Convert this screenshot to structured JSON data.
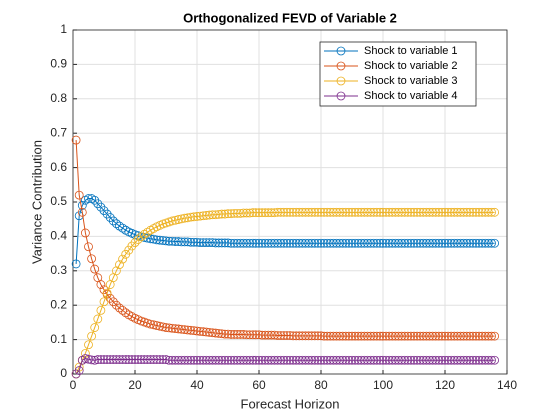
{
  "chart_data": {
    "type": "line",
    "title": "Orthogonalized FEVD of Variable 2",
    "x_label": "Forecast Horizon",
    "y_label": "Variance Contribution",
    "xlim": [
      0,
      140
    ],
    "xticks": [
      0,
      20,
      40,
      60,
      80,
      100,
      120,
      140
    ],
    "ylim": [
      0,
      1
    ],
    "yticks": [
      0,
      0.1,
      0.2,
      0.3,
      0.4,
      0.5,
      0.6,
      0.7,
      0.8,
      0.9,
      1
    ],
    "grid": true,
    "legend_position": "top-right",
    "marker": "circle",
    "x": [
      1,
      2,
      3,
      4,
      5,
      6,
      7,
      8,
      9,
      10,
      11,
      12,
      13,
      14,
      15,
      16,
      17,
      18,
      19,
      20,
      21,
      22,
      23,
      24,
      25,
      26,
      27,
      28,
      29,
      30,
      31,
      32,
      33,
      34,
      35,
      36,
      37,
      38,
      39,
      40,
      41,
      42,
      43,
      44,
      45,
      46,
      47,
      48,
      49,
      50,
      51,
      52,
      53,
      54,
      55,
      56,
      57,
      58,
      59,
      60,
      61,
      62,
      63,
      64,
      65,
      66,
      67,
      68,
      69,
      70,
      71,
      72,
      73,
      74,
      75,
      76,
      77,
      78,
      79,
      80,
      81,
      82,
      83,
      84,
      85,
      86,
      87,
      88,
      89,
      90,
      91,
      92,
      93,
      94,
      95,
      96,
      97,
      98,
      99,
      100,
      101,
      102,
      103,
      104,
      105,
      106,
      107,
      108,
      109,
      110,
      111,
      112,
      113,
      114,
      115,
      116,
      117,
      118,
      119,
      120,
      121,
      122,
      123,
      124,
      125,
      126,
      127,
      128,
      129,
      130,
      131,
      132,
      133,
      134,
      135,
      136
    ],
    "series": [
      {
        "name": "Shock to variable 1",
        "color": "#0072BD",
        "values": [
          0.32,
          0.46,
          0.49,
          0.505,
          0.51,
          0.51,
          0.505,
          0.495,
          0.485,
          0.475,
          0.465,
          0.455,
          0.445,
          0.437,
          0.43,
          0.424,
          0.418,
          0.413,
          0.409,
          0.405,
          0.402,
          0.399,
          0.397,
          0.395,
          0.393,
          0.392,
          0.39,
          0.389,
          0.388,
          0.387,
          0.386,
          0.386,
          0.385,
          0.385,
          0.384,
          0.384,
          0.384,
          0.383,
          0.383,
          0.383,
          0.382,
          0.382,
          0.382,
          0.382,
          0.382,
          0.381,
          0.381,
          0.381,
          0.381,
          0.381,
          0.38,
          0.38,
          0.38,
          0.38,
          0.38,
          0.38,
          0.38,
          0.38,
          0.38,
          0.38,
          0.38,
          0.38,
          0.38,
          0.38,
          0.38,
          0.38,
          0.38,
          0.38,
          0.38,
          0.38,
          0.38,
          0.38,
          0.38,
          0.38,
          0.38,
          0.38,
          0.38,
          0.38,
          0.38,
          0.38,
          0.38,
          0.38,
          0.38,
          0.38,
          0.38,
          0.38,
          0.38,
          0.38,
          0.38,
          0.38,
          0.38,
          0.38,
          0.38,
          0.38,
          0.38,
          0.38,
          0.38,
          0.38,
          0.38,
          0.38,
          0.38,
          0.38,
          0.38,
          0.38,
          0.38,
          0.38,
          0.38,
          0.38,
          0.38,
          0.38,
          0.38,
          0.38,
          0.38,
          0.38,
          0.38,
          0.38,
          0.38,
          0.38,
          0.38,
          0.38,
          0.38,
          0.38,
          0.38,
          0.38,
          0.38,
          0.38,
          0.38,
          0.38,
          0.38,
          0.38,
          0.38,
          0.38,
          0.38,
          0.38,
          0.38,
          0.38
        ]
      },
      {
        "name": "Shock to variable 2",
        "color": "#D95319",
        "values": [
          0.68,
          0.52,
          0.47,
          0.41,
          0.37,
          0.335,
          0.305,
          0.28,
          0.26,
          0.245,
          0.232,
          0.22,
          0.21,
          0.2,
          0.192,
          0.185,
          0.178,
          0.172,
          0.167,
          0.162,
          0.158,
          0.154,
          0.151,
          0.148,
          0.145,
          0.143,
          0.141,
          0.139,
          0.137,
          0.135,
          0.134,
          0.133,
          0.132,
          0.131,
          0.13,
          0.129,
          0.128,
          0.127,
          0.126,
          0.125,
          0.124,
          0.123,
          0.122,
          0.121,
          0.12,
          0.119,
          0.118,
          0.117,
          0.116,
          0.116,
          0.115,
          0.115,
          0.115,
          0.115,
          0.115,
          0.114,
          0.114,
          0.114,
          0.114,
          0.114,
          0.113,
          0.113,
          0.113,
          0.113,
          0.113,
          0.112,
          0.112,
          0.112,
          0.112,
          0.112,
          0.111,
          0.111,
          0.111,
          0.111,
          0.111,
          0.111,
          0.111,
          0.111,
          0.111,
          0.111,
          0.11,
          0.11,
          0.11,
          0.11,
          0.11,
          0.11,
          0.11,
          0.11,
          0.11,
          0.11,
          0.11,
          0.11,
          0.11,
          0.11,
          0.11,
          0.11,
          0.11,
          0.11,
          0.11,
          0.11,
          0.11,
          0.11,
          0.11,
          0.11,
          0.11,
          0.11,
          0.11,
          0.11,
          0.11,
          0.11,
          0.11,
          0.11,
          0.11,
          0.11,
          0.11,
          0.11,
          0.11,
          0.11,
          0.11,
          0.11,
          0.11,
          0.11,
          0.11,
          0.11,
          0.11,
          0.11,
          0.11,
          0.11,
          0.11,
          0.11,
          0.11,
          0.11,
          0.11,
          0.11,
          0.11,
          0.11
        ]
      },
      {
        "name": "Shock to variable 3",
        "color": "#EDB120",
        "values": [
          0.0,
          0.02,
          0.04,
          0.06,
          0.085,
          0.11,
          0.135,
          0.16,
          0.185,
          0.21,
          0.235,
          0.26,
          0.28,
          0.3,
          0.318,
          0.334,
          0.348,
          0.36,
          0.372,
          0.382,
          0.391,
          0.399,
          0.406,
          0.412,
          0.418,
          0.423,
          0.428,
          0.432,
          0.436,
          0.439,
          0.442,
          0.445,
          0.447,
          0.449,
          0.451,
          0.453,
          0.454,
          0.456,
          0.457,
          0.458,
          0.459,
          0.46,
          0.461,
          0.462,
          0.463,
          0.463,
          0.464,
          0.465,
          0.465,
          0.466,
          0.466,
          0.467,
          0.467,
          0.467,
          0.468,
          0.468,
          0.468,
          0.469,
          0.469,
          0.469,
          0.469,
          0.469,
          0.469,
          0.469,
          0.469,
          0.47,
          0.47,
          0.47,
          0.47,
          0.47,
          0.47,
          0.47,
          0.47,
          0.47,
          0.47,
          0.47,
          0.47,
          0.47,
          0.47,
          0.47,
          0.47,
          0.47,
          0.47,
          0.47,
          0.47,
          0.47,
          0.47,
          0.47,
          0.47,
          0.47,
          0.47,
          0.47,
          0.47,
          0.47,
          0.47,
          0.47,
          0.47,
          0.47,
          0.47,
          0.47,
          0.47,
          0.47,
          0.47,
          0.47,
          0.47,
          0.47,
          0.47,
          0.47,
          0.47,
          0.47,
          0.47,
          0.47,
          0.47,
          0.47,
          0.47,
          0.47,
          0.47,
          0.47,
          0.47,
          0.47,
          0.47,
          0.47,
          0.47,
          0.47,
          0.47,
          0.47,
          0.47,
          0.47,
          0.47,
          0.47,
          0.47,
          0.47,
          0.47,
          0.47,
          0.47,
          0.47
        ]
      },
      {
        "name": "Shock to variable 4",
        "color": "#7E2F8E",
        "values": [
          0.0,
          0.01,
          0.04,
          0.045,
          0.043,
          0.041,
          0.04,
          0.042,
          0.042,
          0.042,
          0.042,
          0.042,
          0.042,
          0.042,
          0.042,
          0.042,
          0.042,
          0.042,
          0.042,
          0.042,
          0.042,
          0.042,
          0.042,
          0.042,
          0.042,
          0.042,
          0.042,
          0.042,
          0.042,
          0.042,
          0.04,
          0.04,
          0.04,
          0.04,
          0.04,
          0.04,
          0.04,
          0.04,
          0.04,
          0.04,
          0.04,
          0.04,
          0.04,
          0.04,
          0.04,
          0.04,
          0.04,
          0.04,
          0.04,
          0.04,
          0.04,
          0.04,
          0.04,
          0.04,
          0.04,
          0.04,
          0.04,
          0.04,
          0.04,
          0.04,
          0.04,
          0.04,
          0.04,
          0.04,
          0.04,
          0.04,
          0.04,
          0.04,
          0.04,
          0.04,
          0.04,
          0.04,
          0.04,
          0.04,
          0.04,
          0.04,
          0.04,
          0.04,
          0.04,
          0.04,
          0.04,
          0.04,
          0.04,
          0.04,
          0.04,
          0.04,
          0.04,
          0.04,
          0.04,
          0.04,
          0.04,
          0.04,
          0.04,
          0.04,
          0.04,
          0.04,
          0.04,
          0.04,
          0.04,
          0.04,
          0.04,
          0.04,
          0.04,
          0.04,
          0.04,
          0.04,
          0.04,
          0.04,
          0.04,
          0.04,
          0.04,
          0.04,
          0.04,
          0.04,
          0.04,
          0.04,
          0.04,
          0.04,
          0.04,
          0.04,
          0.04,
          0.04,
          0.04,
          0.04,
          0.04,
          0.04,
          0.04,
          0.04,
          0.04,
          0.04,
          0.04,
          0.04,
          0.04,
          0.04,
          0.04,
          0.04
        ]
      }
    ]
  }
}
